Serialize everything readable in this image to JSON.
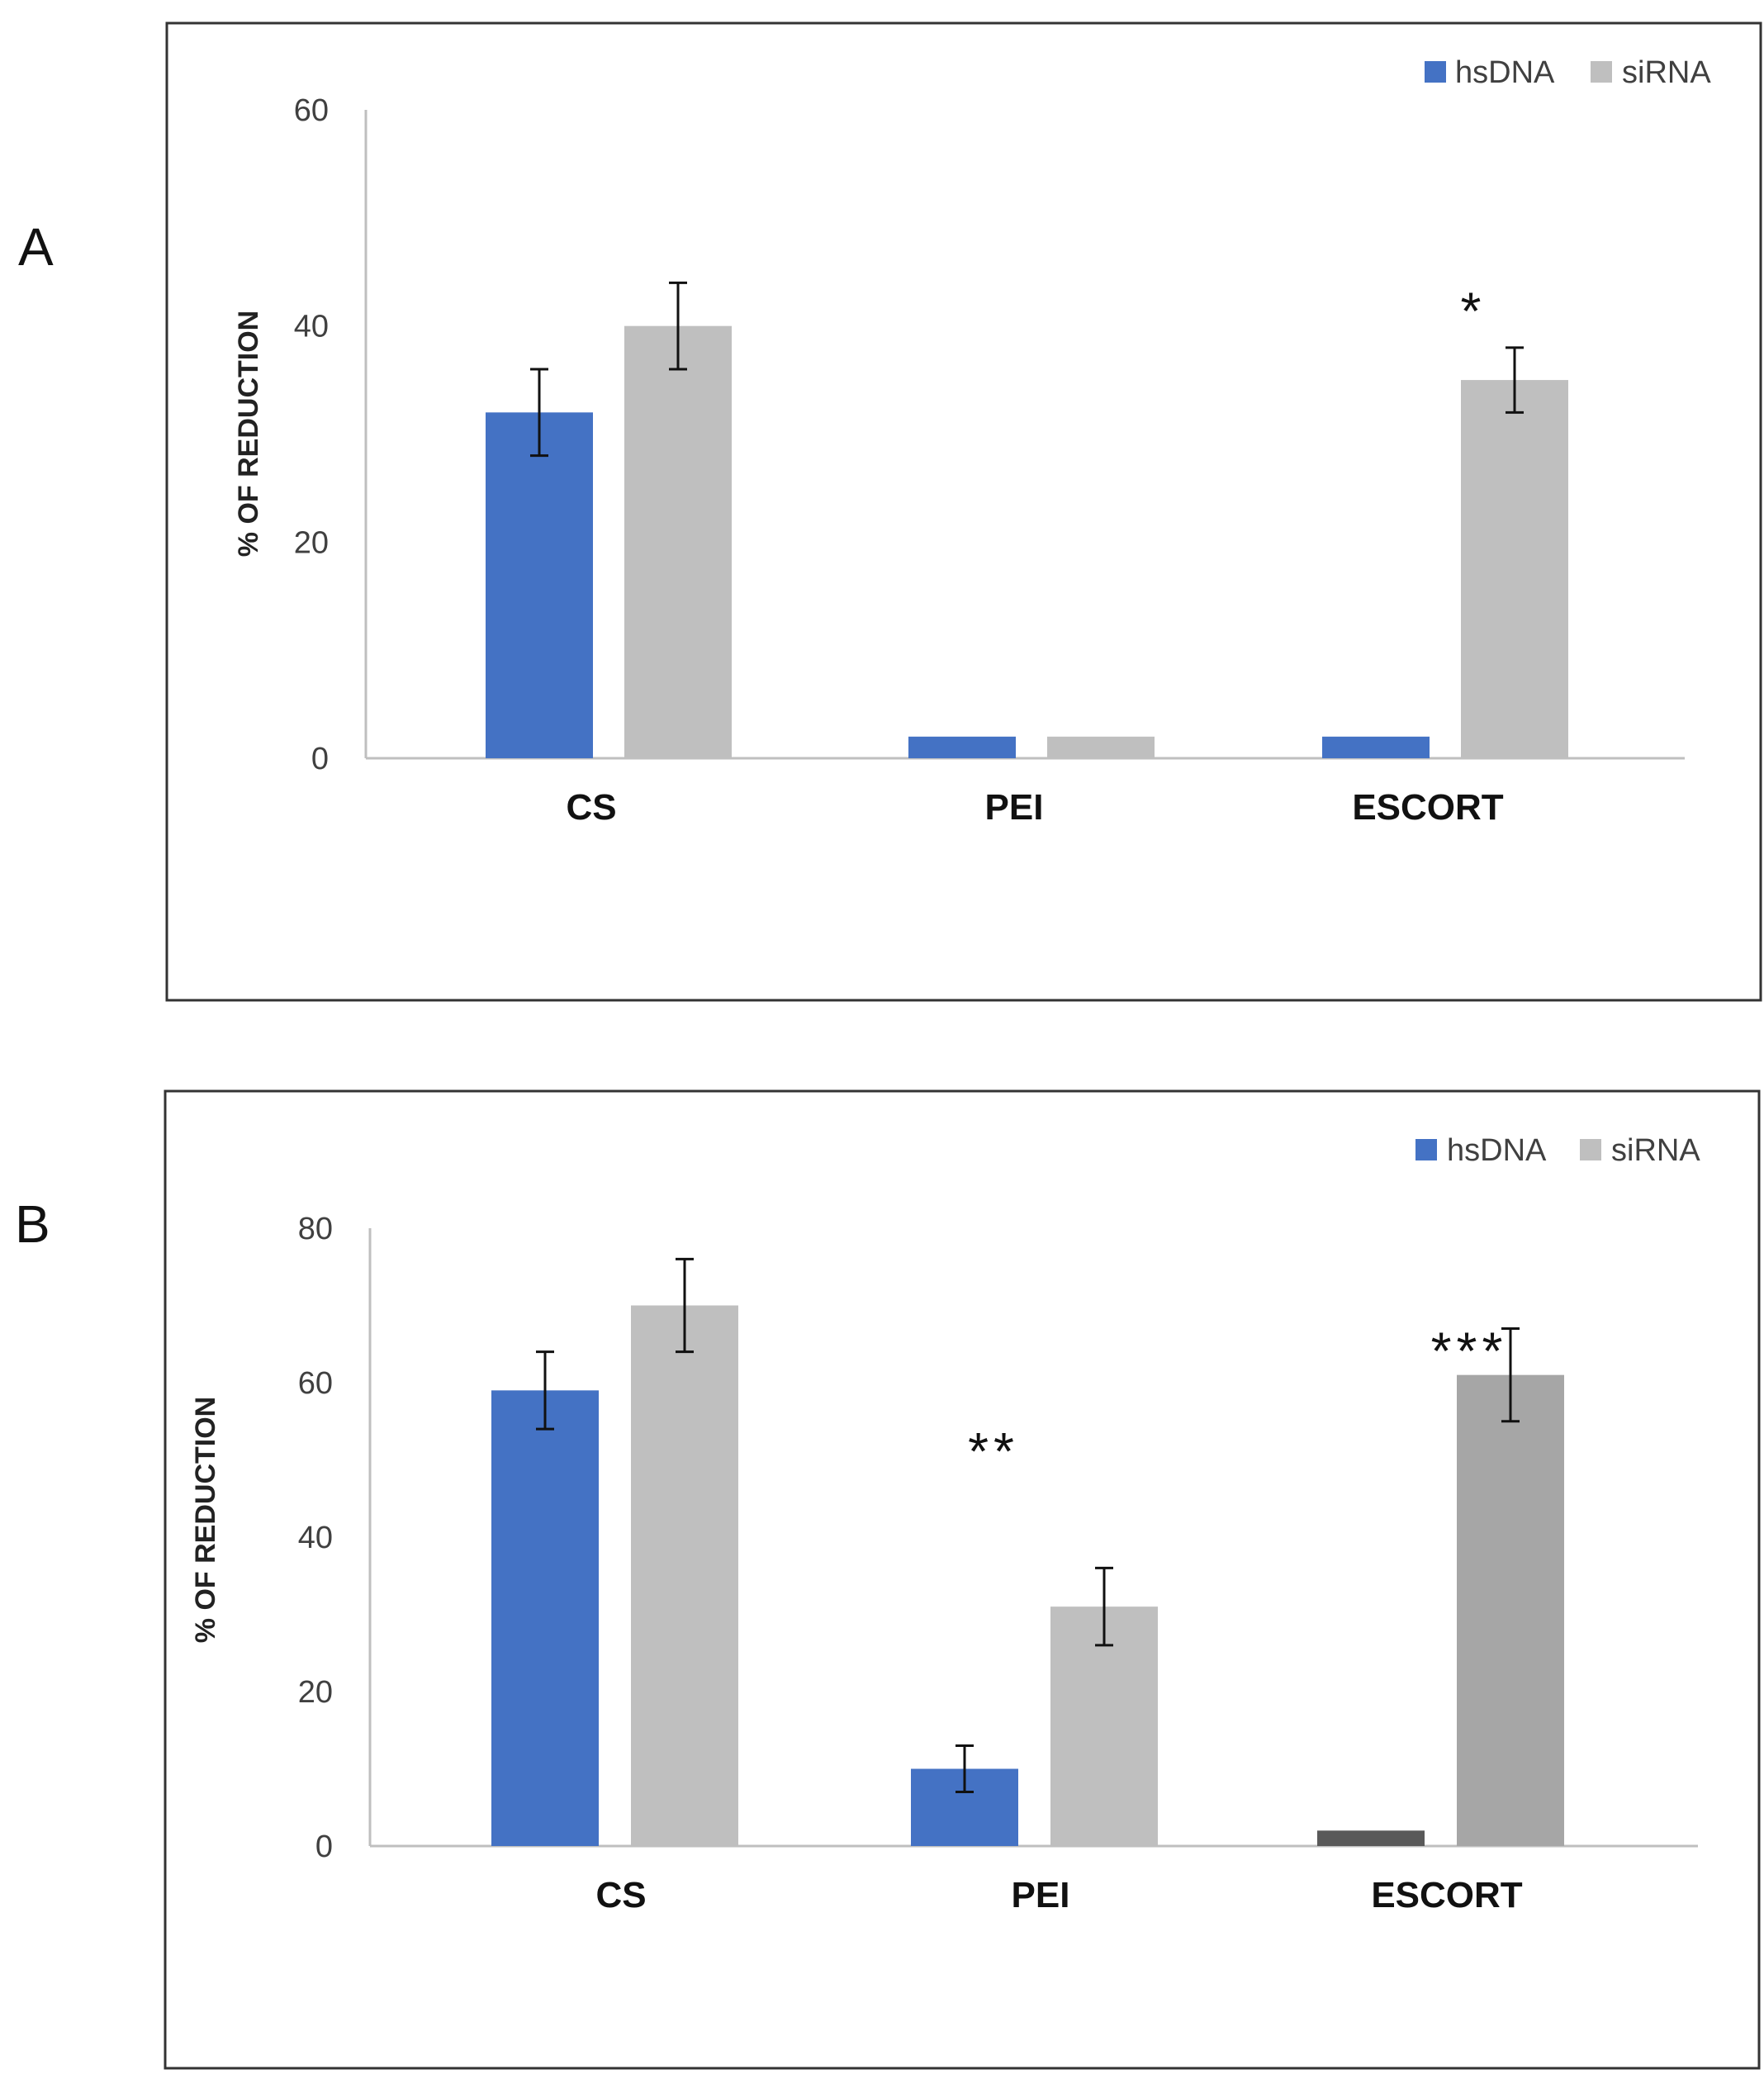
{
  "chart_data": [
    {
      "panel": "A",
      "type": "bar",
      "categories": [
        "CS",
        "PEI",
        "ESCORT"
      ],
      "ylabel": "% OF REDUCTION",
      "xlabel": "",
      "ylim": [
        0,
        60
      ],
      "yticks": [
        0,
        20,
        40,
        60
      ],
      "grid": false,
      "legend_position": "top-right",
      "series": [
        {
          "name": "hsDNA",
          "values": [
            32,
            2,
            2
          ],
          "errors": [
            4,
            0,
            0
          ],
          "colors": [
            "#4472C4",
            "#4472C4",
            "#4472C4"
          ]
        },
        {
          "name": "siRNA",
          "values": [
            40,
            2,
            35
          ],
          "errors": [
            4,
            0,
            3
          ],
          "colors": [
            "#BFBFBF",
            "#BFBFBF",
            "#BFBFBF"
          ]
        }
      ],
      "annotations": [
        {
          "text": "*",
          "category": "ESCORT",
          "series": "siRNA",
          "value": 42
        }
      ]
    },
    {
      "panel": "B",
      "type": "bar",
      "categories": [
        "CS",
        "PEI",
        "ESCORT"
      ],
      "ylabel": "% OF REDUCTION",
      "xlabel": "",
      "ylim": [
        0,
        80
      ],
      "yticks": [
        0,
        20,
        40,
        60,
        80
      ],
      "grid": false,
      "legend_position": "top-right",
      "series": [
        {
          "name": "hsDNA",
          "values": [
            59,
            10,
            2
          ],
          "errors": [
            5,
            3,
            0
          ],
          "colors": [
            "#4472C4",
            "#4472C4",
            "#595959"
          ]
        },
        {
          "name": "siRNA",
          "values": [
            70,
            31,
            61
          ],
          "errors": [
            6,
            5,
            6
          ],
          "colors": [
            "#BFBFBF",
            "#BFBFBF",
            "#A6A6A6"
          ]
        }
      ],
      "annotations": [
        {
          "text": "**",
          "category": "PEI",
          "series": "center",
          "value": 52
        },
        {
          "text": "***",
          "category": "ESCORT",
          "series": "siRNA",
          "value": 65
        }
      ]
    }
  ],
  "panels": {
    "a_label": "A",
    "b_label": "B"
  },
  "colors": {
    "hsDNA": "#4472C4",
    "siRNA": "#BFBFBF"
  }
}
